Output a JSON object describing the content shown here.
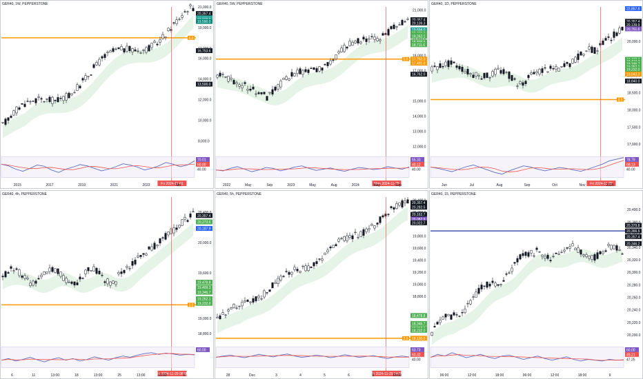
{
  "chart_data": [
    {
      "type": "candlestick",
      "title": "GER40, 1W, PEPPERSTONE",
      "x_ticks": [
        "2015",
        "2017",
        "2019",
        "2021",
        "2023",
        "Mo"
      ],
      "y_ticks": [
        "8,000.0",
        "10,000.0",
        "12,000.0",
        "14,000.0",
        "16,000.0",
        "17,000.0",
        "19,000.0",
        "21,000.0"
      ],
      "ylim": [
        7000,
        21000
      ],
      "start": 9500,
      "end": 20400,
      "trend_shape": "uptrend",
      "price_tags": [
        {
          "label": "20,357.4",
          "value": 20357,
          "color": "#131722"
        },
        {
          "label": "19,938.3",
          "value": 19938,
          "color": "#26a69a"
        },
        {
          "label": "19,938.0",
          "value": 19800,
          "color": "#26a69a"
        },
        {
          "label": "19,590.0",
          "value": 19590,
          "color": "#00897b"
        },
        {
          "label": "16,753.6",
          "value": 16753,
          "color": "#131722"
        },
        {
          "label": "13,500.0",
          "value": 13500,
          "color": "#131722"
        }
      ],
      "hline": {
        "value": 18000,
        "color": "#ff9800",
        "label": "6.0"
      },
      "vline_label": "Fri 2024-11-01",
      "rsi": {
        "ticks": [
          "70.01",
          "60.80",
          "40.00"
        ],
        "values": [
          62,
          58,
          50,
          45,
          52,
          60,
          57,
          48,
          42,
          50,
          55,
          61,
          58,
          52,
          46,
          50,
          56,
          63,
          60,
          55,
          48,
          52,
          58,
          66,
          62,
          56,
          60,
          70
        ]
      }
    },
    {
      "type": "candlestick",
      "title": "GER40, 5W, PEPPERSTONE",
      "x_ticks": [
        "2022",
        "May",
        "Sep",
        "2023",
        "May",
        "Aug",
        "2024",
        "May",
        "Sep"
      ],
      "y_ticks": [
        "21,000.0",
        "19,000.0",
        "18,000.0",
        "17,000.0",
        "15,000.0",
        "14,000.0",
        "13,000.0",
        "12,000.0"
      ],
      "ylim": [
        11700,
        21200
      ],
      "start": 15200,
      "end": 20350,
      "trend_shape": "dip-then-rise",
      "price_tags": [
        {
          "label": "20,357.4",
          "value": 20357,
          "color": "#131722"
        },
        {
          "label": "20,139.3",
          "value": 20139,
          "color": "#131722"
        },
        {
          "label": "19,694.0",
          "value": 19694,
          "color": "#26a69a"
        },
        {
          "label": "19,473.3",
          "value": 19473,
          "color": "#4caf50"
        },
        {
          "label": "19,346.7",
          "value": 19346,
          "color": "#4caf50"
        },
        {
          "label": "19,262.1",
          "value": 19262,
          "color": "#4caf50"
        },
        {
          "label": "18,808.6",
          "value": 18900,
          "color": "#4caf50"
        },
        {
          "label": "18,711.6",
          "value": 18711,
          "color": "#4caf50"
        },
        {
          "label": "17,762.3",
          "value": 17762,
          "color": "#ff9800"
        },
        {
          "label": "17,491.0",
          "value": 17491,
          "color": "#ff9800"
        },
        {
          "label": "16,762.0",
          "value": 16762,
          "color": "#131722"
        }
      ],
      "hline": {
        "value": 17762,
        "color": "#ff9800",
        "label": "5.0"
      },
      "vline_label": "Mon 2024-11-25",
      "rsi": {
        "ticks": [
          "55.33",
          "40.12",
          "40.00"
        ],
        "values": [
          48,
          46,
          52,
          56,
          50,
          44,
          48,
          54,
          52,
          46,
          50,
          55,
          58,
          52,
          47,
          50,
          53,
          48,
          45,
          50,
          54,
          52,
          49,
          51,
          56,
          53,
          50,
          55
        ]
      }
    },
    {
      "type": "candlestick",
      "title": "GER40, 1D, PEPPERSTONE",
      "x_ticks": [
        "Jun",
        "Jul",
        "Aug",
        "Sep",
        "Oct",
        "Nov",
        "2025"
      ],
      "y_ticks": [
        "20,500.0",
        "20,000.0",
        "19,500.0",
        "19,000.0",
        "18,500.0",
        "18,000.0",
        "17,500.0",
        "17,000.0"
      ],
      "ylim": [
        16800,
        21000
      ],
      "start": 18500,
      "end": 20400,
      "trend_shape": "v-then-rise",
      "price_tags": [
        {
          "label": "22,857.8",
          "value": 20950,
          "color": "#2962ff"
        },
        {
          "label": "20,357.4",
          "value": 20580,
          "color": "#131722"
        },
        {
          "label": "20,139.9",
          "value": 20480,
          "color": "#131722"
        },
        {
          "label": "20,761.6",
          "value": 20360,
          "color": "#7e57c2"
        },
        {
          "label": "19,473.3",
          "value": 19473,
          "color": "#4caf50"
        },
        {
          "label": "19,413.3",
          "value": 19413,
          "color": "#4caf50"
        },
        {
          "label": "19,346.7",
          "value": 19346,
          "color": "#4caf50"
        },
        {
          "label": "19,262.1",
          "value": 19262,
          "color": "#4caf50"
        },
        {
          "label": "19,232.0",
          "value": 19180,
          "color": "#4caf50"
        },
        {
          "label": "19,043.3",
          "value": 19043,
          "color": "#ff9800"
        },
        {
          "label": "18,840.0",
          "value": 18840,
          "color": "#131722"
        }
      ],
      "hline": {
        "value": 18300,
        "color": "#ff9800",
        "label": "3.0"
      },
      "vline_label": "Fri 2024-11-29",
      "rsi": {
        "ticks": [
          "78.79",
          "68.13",
          "40.00"
        ],
        "values": [
          55,
          52,
          48,
          44,
          50,
          56,
          60,
          54,
          48,
          42,
          38,
          46,
          52,
          58,
          55,
          50,
          46,
          50,
          54,
          52,
          48,
          45,
          50,
          56,
          62,
          70,
          74,
          78
        ]
      }
    },
    {
      "type": "candlestick",
      "title": "GER40, 4h, PEPPERSTONE",
      "x_ticks": [
        "6",
        "11",
        "13:00",
        "18",
        "13:00",
        "25",
        "13:00",
        "13:00",
        "9"
      ],
      "y_ticks": [
        "20,400.0",
        "20,000.0",
        "19,600.0",
        "19,200.0",
        "19,000.0",
        "18,800.0"
      ],
      "ylim": [
        18700,
        20600
      ],
      "start": 19200,
      "end": 20380,
      "trend_shape": "flat-then-rise",
      "price_tags": [
        {
          "label": "20,357.4",
          "value": 20357,
          "color": "#131722"
        },
        {
          "label": "20,273.6",
          "value": 20273,
          "color": "#4caf50"
        },
        {
          "label": "20,187.9",
          "value": 20187,
          "color": "#2962ff"
        },
        {
          "label": "19,478.8",
          "value": 19478,
          "color": "#4caf50"
        },
        {
          "label": "19,409.3",
          "value": 19409,
          "color": "#4caf50"
        },
        {
          "label": "19,346.7",
          "value": 19346,
          "color": "#4caf50"
        },
        {
          "label": "19,262.1",
          "value": 19262,
          "color": "#4caf50"
        },
        {
          "label": "19,232.0",
          "value": 19200,
          "color": "#4caf50"
        }
      ],
      "hline": {
        "value": 19180,
        "color": "#ff9800",
        "label": "3.0"
      },
      "vline_label": "Fri 2024-11-29 08:00",
      "rsi": {
        "ticks": [
          "60.00"
        ],
        "values": [
          48,
          52,
          46,
          50,
          55,
          49,
          44,
          50,
          54,
          48,
          52,
          46,
          50,
          56,
          52,
          48,
          54,
          58,
          55,
          60,
          64,
          66,
          62,
          65,
          63,
          60,
          62,
          61
        ]
      }
    },
    {
      "type": "candlestick",
      "title": "GER40, 5h, PEPPERSTONE",
      "x_ticks": [
        "28",
        "Dec",
        "3",
        "4",
        "5",
        "6",
        "9",
        "18:00"
      ],
      "y_ticks": [
        "20,400.0",
        "20,200.0",
        "20,000.0",
        "19,800.0",
        "19,600.0",
        "19,400.0",
        "19,200.0",
        "19,000.0",
        "18,800.0",
        "18,100.0"
      ],
      "ylim": [
        18050,
        20450
      ],
      "start": 18400,
      "end": 20360,
      "trend_shape": "steady-rise",
      "price_tags": [
        {
          "label": "20,357.4",
          "value": 20357,
          "color": "#131722"
        },
        {
          "label": "20,282.5",
          "value": 20282,
          "color": "#131722"
        },
        {
          "label": "20,162.7",
          "value": 20162,
          "color": "#131722"
        },
        {
          "label": "20,082.9",
          "value": 20082,
          "color": "#7e57c2"
        },
        {
          "label": "20,022.7",
          "value": 20022,
          "color": "#131722"
        },
        {
          "label": "18,478.8",
          "value": 18478,
          "color": "#4caf50"
        },
        {
          "label": "18,346.7",
          "value": 18346,
          "color": "#4caf50"
        },
        {
          "label": "18,262.1",
          "value": 18262,
          "color": "#4caf50"
        },
        {
          "label": "18,232.0",
          "value": 18232,
          "color": "#4caf50"
        },
        {
          "label": "18,100.0",
          "value": 18100,
          "color": "#ff9800"
        }
      ],
      "hline": {
        "value": 18100,
        "color": "#ff9800",
        "label": "2.0"
      },
      "vline_label": "Fri 2024-11-29 14:00",
      "rsi": {
        "ticks": [
          "63.73",
          "60.32",
          "40.00"
        ],
        "values": [
          55,
          58,
          60,
          57,
          54,
          58,
          62,
          59,
          56,
          60,
          63,
          58,
          55,
          57,
          60,
          58,
          54,
          57,
          61,
          58,
          55,
          57,
          59,
          55,
          52,
          56,
          58,
          56
        ]
      }
    },
    {
      "type": "candlestick",
      "title": "GER40, 15, PEPPERSTONE",
      "x_ticks": [
        "06:00",
        "12:00",
        "18:00",
        "06:00",
        "12:00",
        "18:00",
        "9"
      ],
      "y_ticks": [
        "20,400.0",
        "20,380.0",
        "20,360.0",
        "20,340.0",
        "20,320.0",
        "20,300.0",
        "20,280.0",
        "20,260.0",
        "20,240.0",
        "20,220.0",
        "20,200.0"
      ],
      "ylim": [
        20190,
        20420
      ],
      "start": 20205,
      "end": 20355,
      "trend_shape": "rise-then-range",
      "price_tags": [
        {
          "label": "20,379.8",
          "value": 20375,
          "color": "#131722"
        },
        {
          "label": "20,366.5",
          "value": 20366,
          "color": "#131722"
        },
        {
          "label": "20,357.4",
          "value": 20357,
          "color": "#131722"
        },
        {
          "label": "20,346.2",
          "value": 20346,
          "color": "#131722"
        }
      ],
      "hline": {
        "value": 20366,
        "color": "#3f51b5",
        "label": ""
      },
      "vline_label": "",
      "rsi": {
        "ticks": [
          "60.00",
          "49.21",
          "47.25"
        ],
        "values": [
          55,
          62,
          58,
          66,
          60,
          54,
          58,
          62,
          56,
          52,
          58,
          60,
          55,
          50,
          54,
          58,
          52,
          48,
          52,
          56,
          50,
          46,
          50,
          48,
          46,
          50,
          48,
          49
        ]
      }
    }
  ]
}
